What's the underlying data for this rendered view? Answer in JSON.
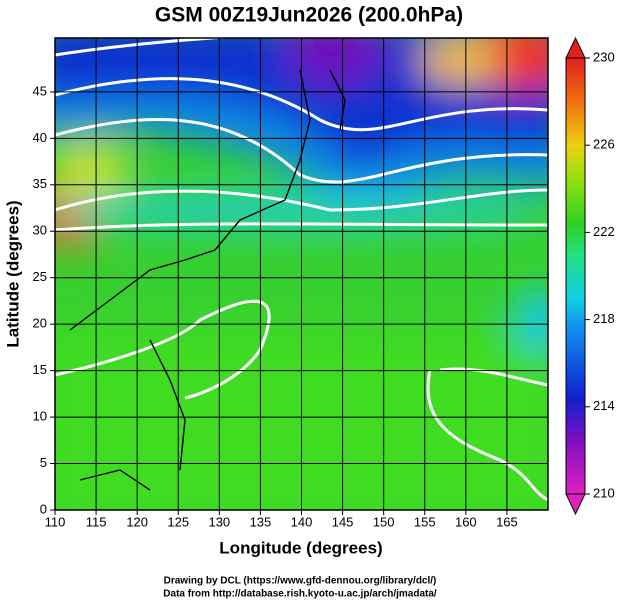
{
  "chart_data": {
    "type": "map",
    "title": "GSM 00Z19Jun2026 (200.0hPa)",
    "x_label": "Longitude (degrees)",
    "y_label": "Latitude  (degrees)",
    "xlim": [
      110,
      170
    ],
    "xticks": [
      110,
      115,
      120,
      125,
      130,
      135,
      140,
      145,
      150,
      155,
      160,
      165
    ],
    "ylim": [
      0,
      50.8
    ],
    "yticks": [
      0,
      5,
      10,
      15,
      20,
      25,
      30,
      35,
      40,
      45
    ],
    "grid": true,
    "colorbar": {
      "lim": [
        210,
        230
      ],
      "ticks": [
        210,
        214,
        218,
        222,
        226,
        230
      ]
    },
    "credits": [
      "Drawing by DCL (https://www.gfd-dennou.org/library/dcl/)",
      "Data from http://database.rish.kyoto-u.ac.jp/arch/jmadata/"
    ]
  }
}
